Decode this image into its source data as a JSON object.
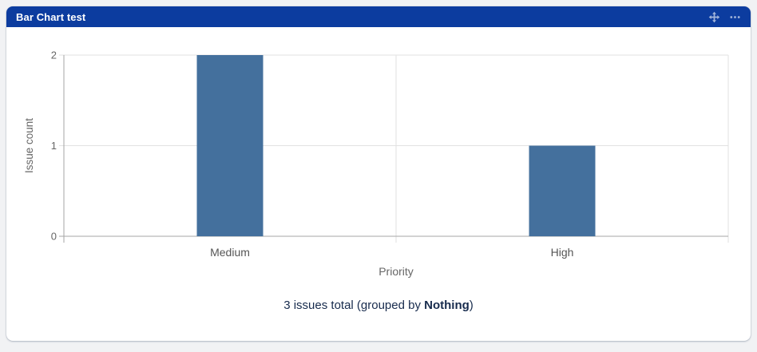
{
  "widget": {
    "title": "Bar Chart test",
    "header_color": "#0c3c9f",
    "icons": {
      "move": "drag-move-icon",
      "more": "more-options-icon"
    }
  },
  "chart_data": {
    "type": "bar",
    "title": "",
    "categories": [
      "Medium",
      "High"
    ],
    "values": [
      2,
      1
    ],
    "xlabel": "Priority",
    "ylabel": "Issue count",
    "ylim": [
      0,
      2
    ],
    "yticks": [
      0,
      1,
      2
    ],
    "bar_color": "#44709d",
    "grid": true,
    "legend_position": "none",
    "colors": {
      "gridline": "#e2e2e2",
      "axis": "#a6a6a6",
      "tick_label": "#666666",
      "category_label": "#555555",
      "axis_title": "#666666"
    }
  },
  "footer": {
    "text_prefix": "3 issues total (grouped by ",
    "group_by": "Nothing",
    "text_suffix": ")"
  }
}
